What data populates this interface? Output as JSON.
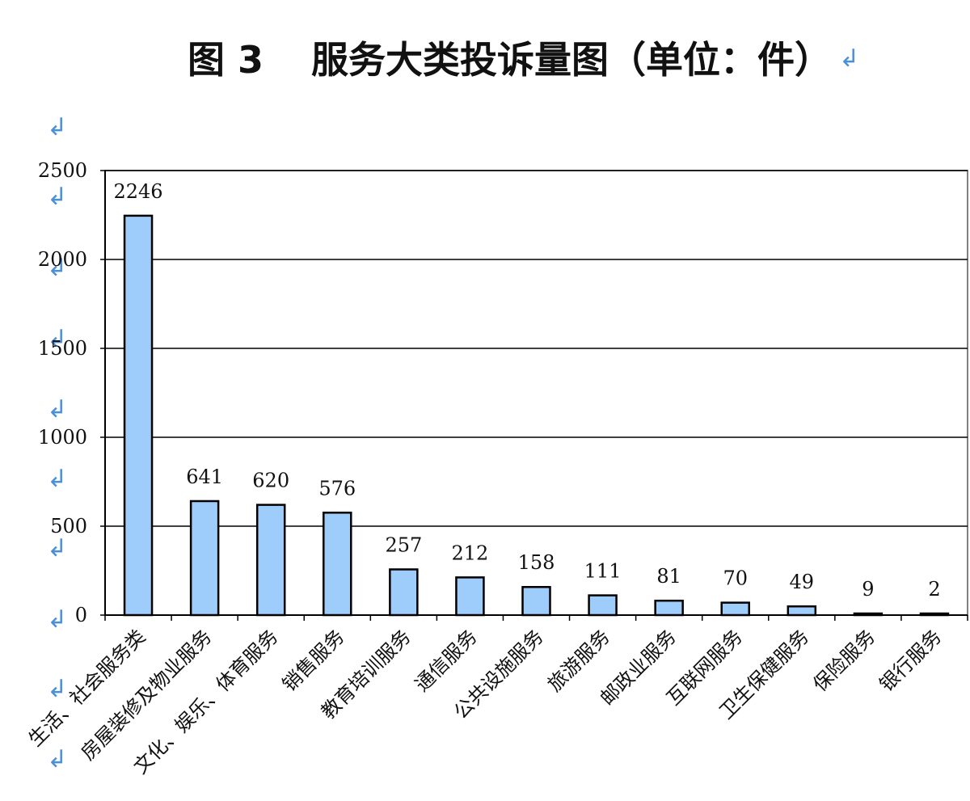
{
  "title": {
    "label": "图 3",
    "text": "服务大类投诉量图（单位：件）"
  },
  "paragraph_mark": "↲",
  "colors": {
    "bar_fill": "#9fcdfb",
    "bar_stroke": "#000000",
    "grid": "#000000",
    "plot_border": "#808080",
    "paragraph_mark": "#4a90d9"
  },
  "chart_data": {
    "type": "bar",
    "title": "服务大类投诉量图（单位：件）",
    "xlabel": "",
    "ylabel": "",
    "ylim": [
      0,
      2500
    ],
    "yticks": [
      0,
      500,
      1000,
      1500,
      2000,
      2500
    ],
    "grid": true,
    "legend": "none",
    "categories": [
      "生活、社会服务类",
      "房屋装修及物业服务",
      "文化、娱乐、体育服务",
      "销售服务",
      "教育培训服务",
      "通信服务",
      "公共设施服务",
      "旅游服务",
      "邮政业服务",
      "互联网服务",
      "卫生保健服务",
      "保险服务",
      "银行服务"
    ],
    "values": [
      2246,
      641,
      620,
      576,
      257,
      212,
      158,
      111,
      81,
      70,
      49,
      9,
      2
    ]
  }
}
